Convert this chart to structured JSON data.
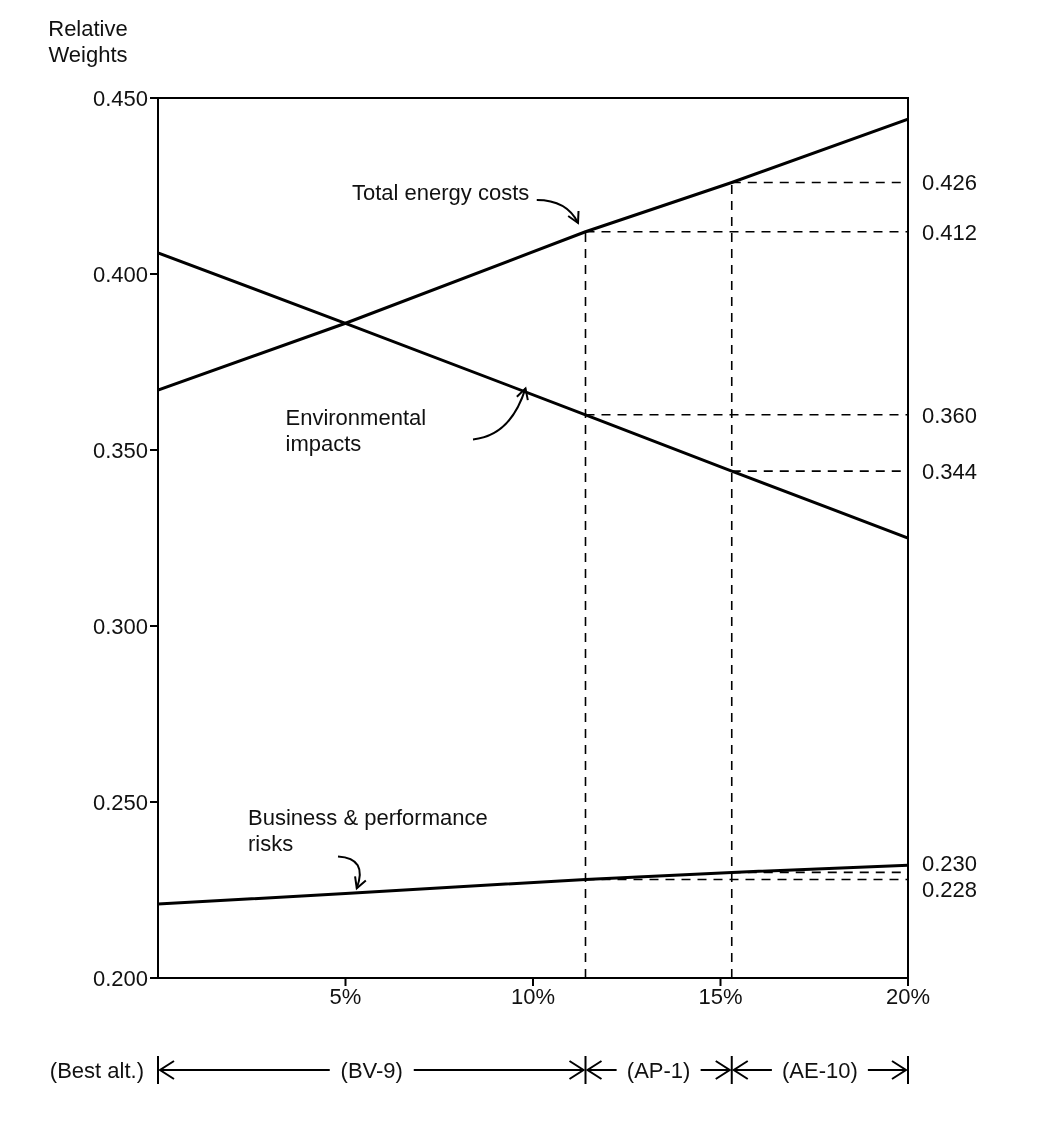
{
  "chart_data": {
    "type": "line",
    "ylabel": "Relative Weights",
    "x": [
      0,
      5,
      11.4,
      15.3,
      20
    ],
    "xlim": [
      0,
      20
    ],
    "xticks": [
      {
        "value": 5,
        "label": "5%"
      },
      {
        "value": 10,
        "label": "10%"
      },
      {
        "value": 15,
        "label": "15%"
      },
      {
        "value": 20,
        "label": "20%"
      }
    ],
    "ylim": [
      0.2,
      0.45
    ],
    "yticks": [
      {
        "value": 0.2,
        "label": "0.200"
      },
      {
        "value": 0.25,
        "label": "0.250"
      },
      {
        "value": 0.3,
        "label": "0.300"
      },
      {
        "value": 0.35,
        "label": "0.350"
      },
      {
        "value": 0.4,
        "label": "0.400"
      },
      {
        "value": 0.45,
        "label": "0.450"
      }
    ],
    "series": [
      {
        "name": "Total energy costs",
        "color": "#000000",
        "values": [
          0.367,
          0.386,
          0.412,
          0.426,
          0.444
        ]
      },
      {
        "name": "Environmental impacts",
        "color": "#000000",
        "values": [
          0.406,
          0.386,
          0.36,
          0.344,
          0.325
        ]
      },
      {
        "name": "Business & performance risks",
        "color": "#000000",
        "values": [
          0.221,
          0.224,
          0.228,
          0.23,
          0.232
        ]
      }
    ],
    "ref_lines": [
      {
        "axis": "x",
        "value": 11.4,
        "color": "#000000",
        "line_style": "dashed"
      },
      {
        "axis": "x",
        "value": 15.3,
        "color": "#000000",
        "line_style": "dashed"
      },
      {
        "axis": "y",
        "value": 0.426,
        "label": "0.426",
        "color": "#000000",
        "line_style": "dashed"
      },
      {
        "axis": "y",
        "value": 0.412,
        "label": "0.412",
        "color": "#000000",
        "line_style": "dashed"
      },
      {
        "axis": "y",
        "value": 0.36,
        "label": "0.360",
        "color": "#000000",
        "line_style": "dashed"
      },
      {
        "axis": "y",
        "value": 0.344,
        "label": "0.344",
        "color": "#000000",
        "line_style": "dashed"
      },
      {
        "axis": "y",
        "value": 0.23,
        "label": "0.230",
        "color": "#000000",
        "line_style": "dashed"
      },
      {
        "axis": "y",
        "value": 0.228,
        "label": "0.228",
        "color": "#000000",
        "line_style": "dashed"
      }
    ],
    "annotations": [
      "(Best alt.)",
      "(BV-9)",
      "(AP-1)",
      "(AE-10)"
    ]
  }
}
